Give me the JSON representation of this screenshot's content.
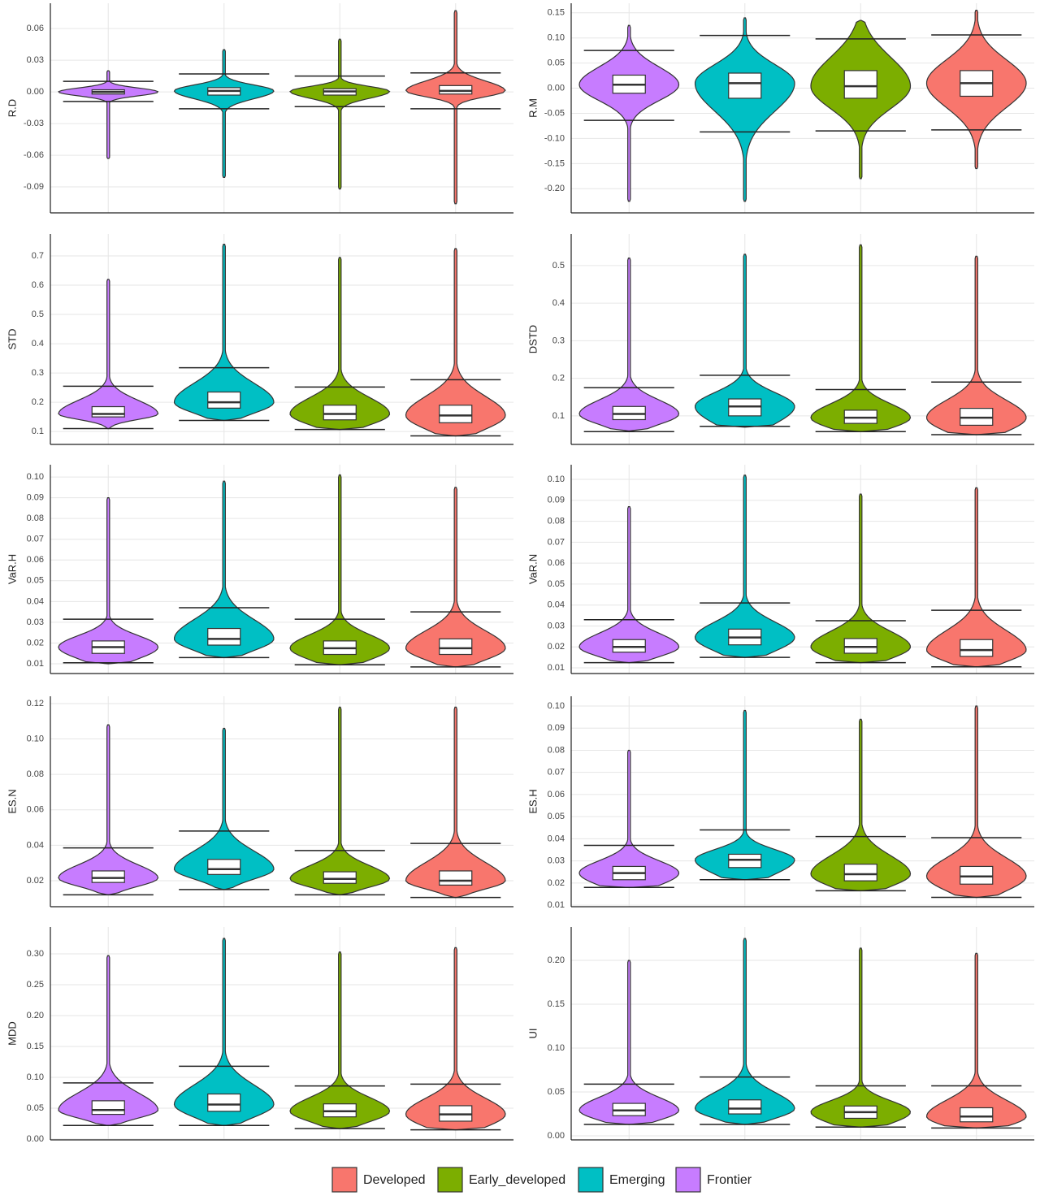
{
  "legend": {
    "position": "bottom",
    "entries": [
      {
        "name": "Developed",
        "color": "#f8766d"
      },
      {
        "name": "Early_developed",
        "color": "#7cae00"
      },
      {
        "name": "Emerging",
        "color": "#00bfc4"
      },
      {
        "name": "Frontier",
        "color": "#c77cff"
      }
    ]
  },
  "chart_data": [
    {
      "type": "violin",
      "y_label": "R.D",
      "ylim": [
        -0.1146,
        0.084
      ],
      "yticks": [
        -0.09,
        -0.06,
        -0.03,
        {
          "value": 0,
          "label": "0.00"
        },
        0.03,
        0.06
      ],
      "grid": true,
      "series": [
        {
          "min": -0.106,
          "q1": -0.002,
          "median": 0.001,
          "q3": 0.006,
          "max": 0.077,
          "lower": -0.016,
          "upper": 0.018
        },
        {
          "min": -0.092,
          "q1": -0.003,
          "median": 0.0005,
          "q3": 0.003,
          "max": 0.05,
          "lower": -0.014,
          "upper": 0.015
        },
        {
          "min": -0.081,
          "q1": -0.003,
          "median": 0.001,
          "q3": 0.004,
          "max": 0.04,
          "lower": -0.016,
          "upper": 0.017
        },
        {
          "min": -0.063,
          "q1": -0.002,
          "median": 0,
          "q3": 0.002,
          "max": 0.02,
          "lower": -0.009,
          "upper": 0.01
        }
      ]
    },
    {
      "type": "violin",
      "y_label": "R.M",
      "ylim": [
        -0.248,
        0.169
      ],
      "yticks": [
        {
          "value": -0.2,
          "label": "-0.20"
        },
        -0.15,
        {
          "value": -0.1,
          "label": "-0.10"
        },
        -0.05,
        {
          "value": 0,
          "label": "0.00"
        },
        0.05,
        {
          "value": 0.1,
          "label": "0.10"
        },
        0.15
      ],
      "grid": true,
      "series": [
        {
          "min": -0.16,
          "q1": -0.016,
          "median": 0.01,
          "q3": 0.035,
          "max": 0.155,
          "lower": -0.083,
          "upper": 0.106
        },
        {
          "min": -0.18,
          "q1": -0.02,
          "median": 0.004,
          "q3": 0.035,
          "max": 0.135,
          "lower": -0.085,
          "upper": 0.098
        },
        {
          "min": -0.225,
          "q1": -0.02,
          "median": 0.01,
          "q3": 0.03,
          "max": 0.14,
          "lower": -0.087,
          "upper": 0.105
        },
        {
          "min": -0.225,
          "q1": -0.01,
          "median": 0.007,
          "q3": 0.026,
          "max": 0.125,
          "lower": -0.064,
          "upper": 0.075
        }
      ]
    },
    {
      "type": "violin",
      "y_label": "STD",
      "ylim": [
        0.056,
        0.775
      ],
      "yticks": [
        0.1,
        0.2,
        0.3,
        0.4,
        0.5,
        0.6,
        0.7
      ],
      "grid": true,
      "series": [
        {
          "min": 0.085,
          "q1": 0.13,
          "median": 0.155,
          "q3": 0.19,
          "max": 0.725,
          "lower": 0.085,
          "upper": 0.277
        },
        {
          "min": 0.107,
          "q1": 0.14,
          "median": 0.16,
          "q3": 0.19,
          "max": 0.695,
          "lower": 0.107,
          "upper": 0.252
        },
        {
          "min": 0.138,
          "q1": 0.18,
          "median": 0.2,
          "q3": 0.235,
          "max": 0.74,
          "lower": 0.138,
          "upper": 0.318
        },
        {
          "min": 0.11,
          "q1": 0.15,
          "median": 0.16,
          "q3": 0.185,
          "max": 0.62,
          "lower": 0.11,
          "upper": 0.255
        }
      ]
    },
    {
      "type": "violin",
      "y_label": "DSTD",
      "ylim": [
        0.024,
        0.584
      ],
      "yticks": [
        0.1,
        0.2,
        0.3,
        0.4,
        0.5
      ],
      "grid": true,
      "series": [
        {
          "min": 0.05,
          "q1": 0.075,
          "median": 0.095,
          "q3": 0.12,
          "max": 0.525,
          "lower": 0.05,
          "upper": 0.19
        },
        {
          "min": 0.058,
          "q1": 0.08,
          "median": 0.095,
          "q3": 0.115,
          "max": 0.555,
          "lower": 0.058,
          "upper": 0.17
        },
        {
          "min": 0.07,
          "q1": 0.1,
          "median": 0.125,
          "q3": 0.145,
          "max": 0.53,
          "lower": 0.072,
          "upper": 0.208
        },
        {
          "min": 0.06,
          "q1": 0.09,
          "median": 0.105,
          "q3": 0.125,
          "max": 0.52,
          "lower": 0.058,
          "upper": 0.175
        }
      ]
    },
    {
      "type": "violin",
      "y_label": "VaR.H",
      "ylim": [
        0.0053,
        0.1059
      ],
      "yticks": [
        0.01,
        0.02,
        0.03,
        0.04,
        0.05,
        0.06,
        0.07,
        0.08,
        0.09,
        {
          "value": 0.1,
          "label": "0.10"
        }
      ],
      "grid": true,
      "series": [
        {
          "min": 0.0085,
          "q1": 0.0145,
          "median": 0.0175,
          "q3": 0.022,
          "max": 0.095,
          "lower": 0.0085,
          "upper": 0.035
        },
        {
          "min": 0.0095,
          "q1": 0.0145,
          "median": 0.0175,
          "q3": 0.021,
          "max": 0.101,
          "lower": 0.0095,
          "upper": 0.0315
        },
        {
          "min": 0.013,
          "q1": 0.019,
          "median": 0.022,
          "q3": 0.027,
          "max": 0.098,
          "lower": 0.013,
          "upper": 0.037
        },
        {
          "min": 0.01,
          "q1": 0.015,
          "median": 0.018,
          "q3": 0.021,
          "max": 0.09,
          "lower": 0.0105,
          "upper": 0.0315
        }
      ]
    },
    {
      "type": "violin",
      "y_label": "VaR.N",
      "ylim": [
        0.0073,
        0.107
      ],
      "yticks": [
        0.01,
        0.02,
        0.03,
        0.04,
        0.05,
        0.06,
        0.07,
        0.08,
        0.09,
        {
          "value": 0.1,
          "label": "0.10"
        }
      ],
      "grid": true,
      "series": [
        {
          "min": 0.0105,
          "q1": 0.0155,
          "median": 0.0185,
          "q3": 0.0235,
          "max": 0.096,
          "lower": 0.0105,
          "upper": 0.0375
        },
        {
          "min": 0.0125,
          "q1": 0.017,
          "median": 0.02,
          "q3": 0.024,
          "max": 0.093,
          "lower": 0.0125,
          "upper": 0.0325
        },
        {
          "min": 0.015,
          "q1": 0.021,
          "median": 0.0245,
          "q3": 0.0285,
          "max": 0.102,
          "lower": 0.015,
          "upper": 0.041
        },
        {
          "min": 0.0125,
          "q1": 0.0175,
          "median": 0.02,
          "q3": 0.0235,
          "max": 0.087,
          "lower": 0.0125,
          "upper": 0.033
        }
      ]
    },
    {
      "type": "violin",
      "y_label": "ES.N",
      "ylim": [
        0.0053,
        0.1241
      ],
      "yticks": [
        0.02,
        0.04,
        0.06,
        0.08,
        {
          "value": 0.1,
          "label": "0.10"
        },
        0.12
      ],
      "grid": true,
      "series": [
        {
          "min": 0.0105,
          "q1": 0.0175,
          "median": 0.02,
          "q3": 0.0255,
          "max": 0.118,
          "lower": 0.0105,
          "upper": 0.041
        },
        {
          "min": 0.012,
          "q1": 0.0185,
          "median": 0.021,
          "q3": 0.025,
          "max": 0.118,
          "lower": 0.012,
          "upper": 0.037
        },
        {
          "min": 0.015,
          "q1": 0.0235,
          "median": 0.0265,
          "q3": 0.032,
          "max": 0.106,
          "lower": 0.015,
          "upper": 0.048
        },
        {
          "min": 0.012,
          "q1": 0.019,
          "median": 0.0215,
          "q3": 0.0255,
          "max": 0.108,
          "lower": 0.012,
          "upper": 0.0385
        }
      ]
    },
    {
      "type": "violin",
      "y_label": "ES.H",
      "ylim": [
        0.0093,
        0.1044
      ],
      "yticks": [
        0.01,
        0.02,
        0.03,
        0.04,
        0.05,
        0.06,
        0.07,
        0.08,
        0.09,
        {
          "value": 0.1,
          "label": "0.10"
        }
      ],
      "grid": true,
      "series": [
        {
          "min": 0.0135,
          "q1": 0.0195,
          "median": 0.023,
          "q3": 0.0275,
          "max": 0.1,
          "lower": 0.0135,
          "upper": 0.0405
        },
        {
          "min": 0.0165,
          "q1": 0.021,
          "median": 0.024,
          "q3": 0.0285,
          "max": 0.094,
          "lower": 0.0165,
          "upper": 0.041
        },
        {
          "min": 0.0215,
          "q1": 0.027,
          "median": 0.0305,
          "q3": 0.033,
          "max": 0.098,
          "lower": 0.0215,
          "upper": 0.044
        },
        {
          "min": 0.018,
          "q1": 0.0215,
          "median": 0.0245,
          "q3": 0.0275,
          "max": 0.08,
          "lower": 0.018,
          "upper": 0.037
        }
      ]
    },
    {
      "type": "violin",
      "y_label": "MDD",
      "ylim": [
        -0.0013,
        0.3434
      ],
      "yticks": [
        {
          "value": 0,
          "label": "0.00"
        },
        0.05,
        {
          "value": 0.1,
          "label": "0.10"
        },
        0.15,
        {
          "value": 0.2,
          "label": "0.20"
        },
        0.25,
        {
          "value": 0.3,
          "label": "0.30"
        }
      ],
      "grid": true,
      "series": [
        {
          "min": 0.015,
          "q1": 0.029,
          "median": 0.04,
          "q3": 0.054,
          "max": 0.31,
          "lower": 0.015,
          "upper": 0.089
        },
        {
          "min": 0.017,
          "q1": 0.036,
          "median": 0.045,
          "q3": 0.057,
          "max": 0.303,
          "lower": 0.017,
          "upper": 0.086
        },
        {
          "min": 0.022,
          "q1": 0.045,
          "median": 0.056,
          "q3": 0.073,
          "max": 0.325,
          "lower": 0.022,
          "upper": 0.118
        },
        {
          "min": 0.022,
          "q1": 0.04,
          "median": 0.047,
          "q3": 0.062,
          "max": 0.297,
          "lower": 0.022,
          "upper": 0.091
        }
      ]
    },
    {
      "type": "violin",
      "y_label": "UI",
      "ylim": [
        -0.0046,
        0.238
      ],
      "yticks": [
        {
          "value": 0,
          "label": "0.00"
        },
        0.05,
        {
          "value": 0.1,
          "label": "0.10"
        },
        0.15,
        {
          "value": 0.2,
          "label": "0.20"
        }
      ],
      "grid": true,
      "series": [
        {
          "min": 0.009,
          "q1": 0.016,
          "median": 0.022,
          "q3": 0.032,
          "max": 0.208,
          "lower": 0.009,
          "upper": 0.057
        },
        {
          "min": 0.01,
          "q1": 0.02,
          "median": 0.027,
          "q3": 0.034,
          "max": 0.214,
          "lower": 0.01,
          "upper": 0.057
        },
        {
          "min": 0.013,
          "q1": 0.025,
          "median": 0.031,
          "q3": 0.041,
          "max": 0.225,
          "lower": 0.013,
          "upper": 0.067
        },
        {
          "min": 0.013,
          "q1": 0.023,
          "median": 0.029,
          "q3": 0.037,
          "max": 0.2,
          "lower": 0.013,
          "upper": 0.059
        }
      ]
    }
  ]
}
